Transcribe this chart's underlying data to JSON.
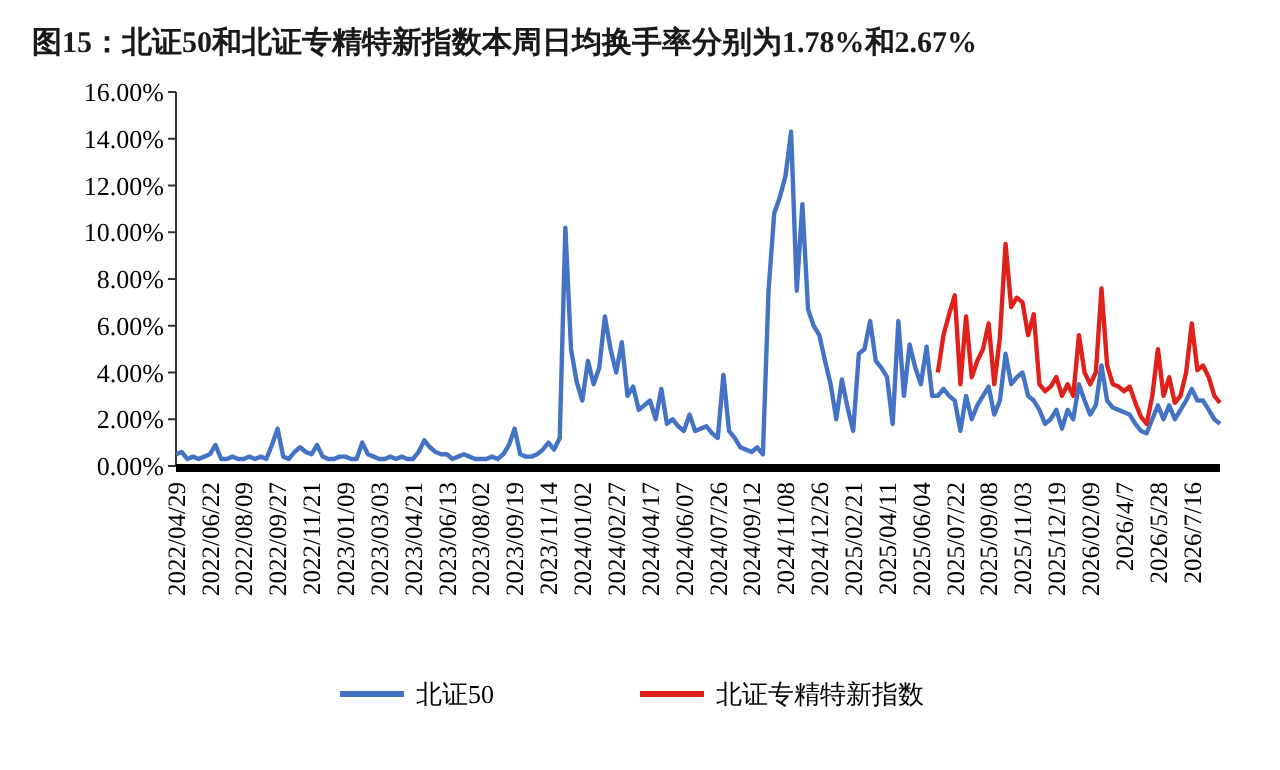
{
  "chart_data": {
    "type": "line",
    "title": "图15：北证50和北证专精特新指数本周日均换手率分别为1.78%和2.67%",
    "categories": [
      "2022/04/29",
      null,
      null,
      null,
      null,
      null,
      "2022/06/22",
      null,
      null,
      null,
      null,
      null,
      "2022/08/09",
      null,
      null,
      null,
      null,
      null,
      "2022/09/27",
      null,
      null,
      null,
      null,
      null,
      "2022/11/21",
      null,
      null,
      null,
      null,
      null,
      "2023/01/09",
      null,
      null,
      null,
      null,
      null,
      "2023/03/03",
      null,
      null,
      null,
      null,
      null,
      "2023/04/21",
      null,
      null,
      null,
      null,
      null,
      "2023/06/13",
      null,
      null,
      null,
      null,
      null,
      "2023/08/02",
      null,
      null,
      null,
      null,
      null,
      "2023/09/19",
      null,
      null,
      null,
      null,
      null,
      "2023/11/14",
      null,
      null,
      null,
      null,
      null,
      "2024/01/02",
      null,
      null,
      null,
      null,
      null,
      "2024/02/27",
      null,
      null,
      null,
      null,
      null,
      "2024/04/17",
      null,
      null,
      null,
      null,
      null,
      "2024/06/07",
      null,
      null,
      null,
      null,
      null,
      "2024/07/26",
      null,
      null,
      null,
      null,
      null,
      "2024/09/12",
      null,
      null,
      null,
      null,
      null,
      "2024/11/08",
      null,
      null,
      null,
      null,
      null,
      "2024/12/26",
      null,
      null,
      null,
      null,
      null,
      "2025/02/21",
      null,
      null,
      null,
      null,
      null,
      "2025/04/11",
      null,
      null,
      null,
      null,
      null,
      "2025/06/04",
      null,
      null,
      null,
      null,
      null,
      "2025/07/22",
      null,
      null,
      null,
      null,
      null,
      "2025/09/08",
      null,
      null,
      null,
      null,
      null,
      "2025/11/03",
      null,
      null,
      null,
      null,
      null,
      "2025/12/19",
      null,
      null,
      null,
      null,
      null,
      "2026/02/09",
      null,
      null,
      null,
      null,
      null,
      "2026/4/7",
      null,
      null,
      null,
      null,
      null,
      "2026/5/28",
      null,
      null,
      null,
      null,
      null,
      "2026/7/16",
      null,
      null,
      null,
      null,
      null
    ],
    "series": [
      {
        "name": "北证50",
        "color": "#4472c4",
        "values": [
          0.5,
          0.6,
          0.3,
          0.4,
          0.3,
          0.4,
          0.5,
          0.9,
          0.3,
          0.3,
          0.4,
          0.3,
          0.3,
          0.4,
          0.3,
          0.4,
          0.3,
          0.9,
          1.6,
          0.4,
          0.3,
          0.6,
          0.8,
          0.6,
          0.5,
          0.9,
          0.4,
          0.3,
          0.3,
          0.4,
          0.4,
          0.3,
          0.3,
          1.0,
          0.5,
          0.4,
          0.3,
          0.3,
          0.4,
          0.3,
          0.4,
          0.3,
          0.3,
          0.6,
          1.1,
          0.8,
          0.6,
          0.5,
          0.5,
          0.3,
          0.4,
          0.5,
          0.4,
          0.3,
          0.3,
          0.3,
          0.4,
          0.3,
          0.5,
          0.9,
          1.6,
          0.5,
          0.4,
          0.4,
          0.5,
          0.7,
          1.0,
          0.7,
          1.2,
          10.2,
          5.0,
          3.6,
          2.8,
          4.5,
          3.5,
          4.2,
          6.4,
          5.0,
          4.0,
          5.3,
          3.0,
          3.4,
          2.4,
          2.6,
          2.8,
          2.0,
          3.3,
          1.8,
          2.0,
          1.7,
          1.5,
          2.2,
          1.5,
          1.6,
          1.7,
          1.4,
          1.2,
          3.9,
          1.5,
          1.2,
          0.8,
          0.7,
          0.6,
          0.8,
          0.5,
          7.5,
          10.8,
          11.5,
          12.4,
          14.3,
          7.5,
          11.2,
          6.7,
          6.0,
          5.6,
          4.5,
          3.5,
          2.0,
          3.7,
          2.5,
          1.5,
          4.8,
          5.0,
          6.2,
          4.5,
          4.2,
          3.8,
          1.8,
          6.2,
          3.0,
          5.2,
          4.2,
          3.5,
          5.1,
          3.0,
          3.0,
          3.3,
          3.0,
          2.8,
          1.5,
          3.0,
          2.0,
          2.6,
          3.0,
          3.4,
          2.2,
          2.8,
          4.8,
          3.5,
          3.8,
          4.0,
          3.0,
          2.8,
          2.4,
          1.8,
          2.0,
          2.4,
          1.6,
          2.4,
          2.0,
          3.5,
          2.8,
          2.2,
          2.6,
          4.3,
          2.8,
          2.5,
          2.4,
          2.3,
          2.2,
          1.8,
          1.5,
          1.4,
          2.0,
          2.6,
          2.0,
          2.6,
          2.0,
          2.4,
          2.8,
          3.3,
          2.8,
          2.8,
          2.4,
          2.0,
          1.8
        ]
      },
      {
        "name": "北证专精特新指数",
        "color": "#e0201b",
        "values": [
          null,
          null,
          null,
          null,
          null,
          null,
          null,
          null,
          null,
          null,
          null,
          null,
          null,
          null,
          null,
          null,
          null,
          null,
          null,
          null,
          null,
          null,
          null,
          null,
          null,
          null,
          null,
          null,
          null,
          null,
          null,
          null,
          null,
          null,
          null,
          null,
          null,
          null,
          null,
          null,
          null,
          null,
          null,
          null,
          null,
          null,
          null,
          null,
          null,
          null,
          null,
          null,
          null,
          null,
          null,
          null,
          null,
          null,
          null,
          null,
          null,
          null,
          null,
          null,
          null,
          null,
          null,
          null,
          null,
          null,
          null,
          null,
          null,
          null,
          null,
          null,
          null,
          null,
          null,
          null,
          null,
          null,
          null,
          null,
          null,
          null,
          null,
          null,
          null,
          null,
          null,
          null,
          null,
          null,
          null,
          null,
          null,
          null,
          null,
          null,
          null,
          null,
          null,
          null,
          null,
          null,
          null,
          null,
          null,
          null,
          null,
          null,
          null,
          null,
          null,
          null,
          null,
          null,
          null,
          null,
          null,
          null,
          null,
          null,
          null,
          null,
          null,
          null,
          null,
          null,
          null,
          null,
          null,
          null,
          null,
          4.0,
          5.6,
          6.5,
          7.3,
          3.5,
          6.4,
          3.8,
          4.5,
          5.0,
          6.1,
          3.5,
          5.5,
          9.5,
          6.8,
          7.2,
          7.0,
          5.6,
          6.5,
          3.5,
          3.2,
          3.4,
          3.8,
          3.0,
          3.5,
          3.0,
          5.6,
          4.0,
          3.5,
          4.0,
          7.6,
          4.3,
          3.5,
          3.4,
          3.2,
          3.4,
          2.7,
          2.1,
          1.8,
          3.0,
          5.0,
          3.0,
          3.8,
          2.7,
          3.0,
          4.0,
          6.1,
          4.1,
          4.3,
          3.8,
          3.0,
          2.7
        ]
      }
    ],
    "ylim": [
      0,
      16
    ],
    "yticks": [
      {
        "value": 0,
        "label": "0.00%"
      },
      {
        "value": 2,
        "label": "2.00%"
      },
      {
        "value": 4,
        "label": "4.00%"
      },
      {
        "value": 6,
        "label": "6.00%"
      },
      {
        "value": 8,
        "label": "8.00%"
      },
      {
        "value": 10,
        "label": "10.00%"
      },
      {
        "value": 12,
        "label": "12.00%"
      },
      {
        "value": 14,
        "label": "14.00%"
      },
      {
        "value": 16,
        "label": "16.00%"
      }
    ],
    "grid": false,
    "legend": "bottom",
    "marker": "none",
    "line_style": "solid"
  }
}
